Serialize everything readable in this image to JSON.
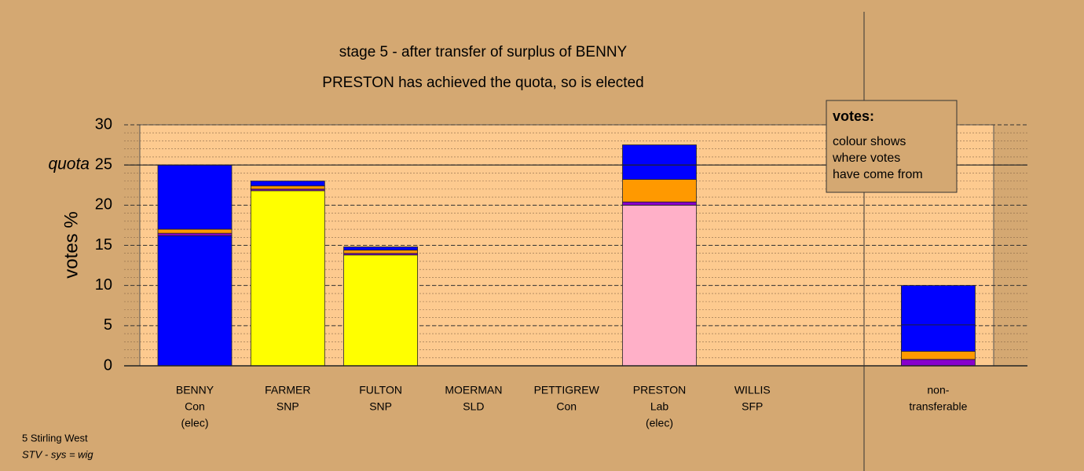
{
  "chart_data": {
    "type": "stacked-bar",
    "title": "stage 5 - after transfer of surplus of BENNY",
    "subtitle": "PRESTON has achieved the quota, so is elected",
    "ylabel": "votes %",
    "ylim": [
      0,
      30
    ],
    "yticks": [
      0,
      5,
      10,
      15,
      20,
      25,
      30
    ],
    "minor_step": 1,
    "quota": {
      "value": 25,
      "label": "quota"
    },
    "grid": true,
    "categories": [
      [
        "BENNY",
        "Con",
        "(elec)"
      ],
      [
        "FARMER",
        "SNP"
      ],
      [
        "FULTON",
        "SNP"
      ],
      [
        "MOERMAN",
        "SLD"
      ],
      [
        "PETTIGREW",
        "Con"
      ],
      [
        "PRESTON",
        "Lab",
        "(elec)"
      ],
      [
        "WILLIS",
        "SFP"
      ],
      null,
      [
        "non-",
        "transferable"
      ]
    ],
    "series": [
      {
        "colors": [
          "#0000ff",
          "#ffff00",
          "#ffff00",
          "#ff9900",
          "#0000ff",
          "#ffb0c8",
          "#8800cc",
          null,
          null
        ],
        "values": [
          16.2,
          21.8,
          13.8,
          0,
          0,
          20.0,
          0,
          null,
          0
        ]
      },
      {
        "color": "#8800cc",
        "values": [
          0.3,
          0.2,
          0.2,
          0,
          0,
          0.4,
          0,
          null,
          0.8
        ]
      },
      {
        "color": "#ff9900",
        "values": [
          0.5,
          0.4,
          0.4,
          0,
          0,
          2.8,
          0,
          null,
          1.0
        ]
      },
      {
        "color": "#0000ff",
        "values": [
          8.0,
          0.6,
          0.4,
          0,
          0,
          1.8,
          0,
          null,
          3.3
        ]
      },
      {
        "color": "#0000ff",
        "values": [
          0,
          0,
          0,
          0,
          0,
          2.5,
          0,
          null,
          4.9
        ]
      }
    ],
    "legend": {
      "title": "votes:",
      "lines": [
        "colour shows",
        "where votes",
        "have come from"
      ]
    },
    "footer": [
      "5 Stirling West",
      "STV - sys = wig"
    ]
  }
}
